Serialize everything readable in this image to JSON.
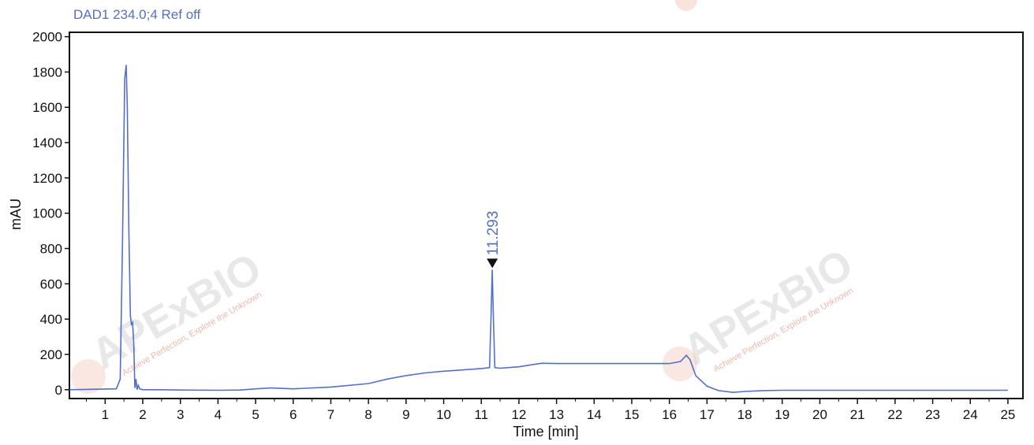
{
  "chart_data": {
    "type": "line",
    "signal_title": "DAD1 234.0;4 Ref off",
    "xlabel": "Time [min]",
    "ylabel": "mAU",
    "xlim": [
      0.05,
      25.4
    ],
    "ylim": [
      -50,
      2025
    ],
    "x_ticks": [
      1,
      2,
      3,
      4,
      5,
      6,
      7,
      8,
      9,
      10,
      11,
      12,
      13,
      14,
      15,
      16,
      17,
      18,
      19,
      20,
      21,
      22,
      23,
      24,
      25
    ],
    "y_ticks": [
      0,
      200,
      400,
      600,
      800,
      1000,
      1200,
      1400,
      1600,
      1800,
      2000
    ],
    "grid": false,
    "series": [
      {
        "color": "#5470c6",
        "x": [
          0.05,
          1.3,
          1.4,
          1.46,
          1.52,
          1.56,
          1.59,
          1.63,
          1.67,
          1.7,
          1.73,
          1.76,
          1.79,
          1.82,
          1.85,
          1.88,
          1.92,
          2.0,
          2.5,
          3.0,
          4.0,
          4.6,
          5.0,
          5.4,
          6.0,
          7.0,
          8.0,
          8.5,
          9.0,
          9.5,
          10.0,
          10.5,
          11.0,
          11.22,
          11.26,
          11.29,
          11.32,
          11.36,
          11.5,
          12.0,
          12.6,
          13.0,
          14.0,
          15.0,
          15.6,
          16.0,
          16.3,
          16.45,
          16.55,
          16.7,
          17.0,
          17.3,
          17.7,
          18.0,
          18.5,
          19.0,
          20.0,
          22.0,
          24.0,
          25.0
        ],
        "y": [
          0,
          5,
          60,
          800,
          1760,
          1840,
          1600,
          900,
          420,
          370,
          380,
          260,
          10,
          60,
          0,
          25,
          5,
          0,
          0,
          -2,
          -3,
          -2,
          5,
          10,
          5,
          15,
          35,
          60,
          80,
          95,
          105,
          112,
          120,
          125,
          420,
          680,
          420,
          125,
          122,
          130,
          150,
          148,
          148,
          148,
          148,
          148,
          160,
          195,
          170,
          80,
          20,
          -5,
          -15,
          -10,
          -5,
          -3,
          -3,
          -3,
          -3,
          -3
        ]
      }
    ],
    "annotations": [
      {
        "label": "11.293",
        "x": 11.293,
        "y": 680,
        "marker": "triangle-down"
      }
    ]
  },
  "watermark": {
    "brand": "APExBIO",
    "tagline": "Achieve Perfection, Explore the Unknown"
  }
}
